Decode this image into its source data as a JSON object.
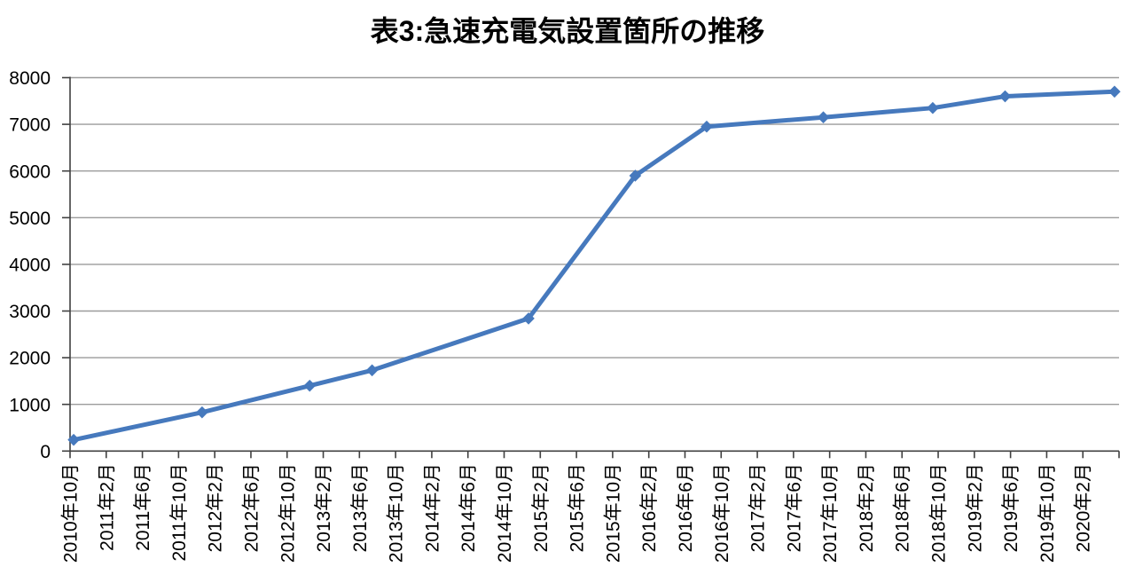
{
  "title": "表3:急速充電気設置箇所の推移",
  "chart_data": {
    "type": "line",
    "title": "表3:急速充電気設置箇所の推移",
    "legend_position": "none",
    "grid": "horizontal-only",
    "marker": "diamond",
    "colors": {
      "line": "#4679BD",
      "marker": "#4679BD",
      "gridline": "#9B9B9B",
      "axis": "#404040",
      "text": "#000000",
      "background": "#FFFFFF"
    },
    "ylim": [
      0,
      8000
    ],
    "y_ticks": [
      0,
      1000,
      2000,
      3000,
      4000,
      5000,
      6000,
      7000,
      8000
    ],
    "x_axis_month_range": [
      0,
      116
    ],
    "x_tick_step_months": 4,
    "x_tick_labels": [
      "2010年10月",
      "2011年2月",
      "2011年6月",
      "2011年10月",
      "2012年2月",
      "2012年6月",
      "2012年10月",
      "2013年2月",
      "2013年6月",
      "2013年10月",
      "2014年2月",
      "2014年6月",
      "2014年10月",
      "2015年2月",
      "2015年6月",
      "2015年10月",
      "2016年2月",
      "2016年6月",
      "2016年10月",
      "2017年2月",
      "2017年6月",
      "2017年10月",
      "2018年2月",
      "2018年6月",
      "2018年10月",
      "2019年2月",
      "2019年6月",
      "2019年10月",
      "2020年2月"
    ],
    "series": [
      {
        "name": "急速充電気設置箇所",
        "points": [
          {
            "date": "2010年11月",
            "month": 0.4,
            "value": 240
          },
          {
            "date": "2011年12月",
            "month": 14.6,
            "value": 830
          },
          {
            "date": "2013年1月",
            "month": 26.5,
            "value": 1400
          },
          {
            "date": "2013年7月",
            "month": 33.4,
            "value": 1730
          },
          {
            "date": "2014年12月",
            "month": 50.7,
            "value": 2840
          },
          {
            "date": "2015年12月",
            "month": 62.5,
            "value": 5900
          },
          {
            "date": "2016年8月",
            "month": 70.4,
            "value": 6950
          },
          {
            "date": "2017年9月",
            "month": 83.3,
            "value": 7150
          },
          {
            "date": "2018年9月",
            "month": 95.4,
            "value": 7350
          },
          {
            "date": "2019年5月",
            "month": 103.4,
            "value": 7600
          },
          {
            "date": "2020年5月",
            "month": 115.5,
            "value": 7700
          }
        ]
      }
    ]
  }
}
